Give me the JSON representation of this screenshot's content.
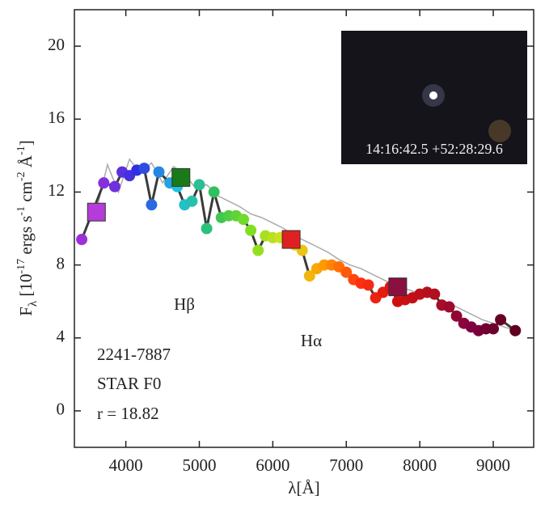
{
  "chart_data": {
    "type": "sed",
    "xlabel_parts": [
      "λ",
      "[Å]"
    ],
    "ylabel_parts": [
      "F",
      "λ",
      " [10",
      "-17",
      " ergs s",
      "-1",
      " cm",
      "-2",
      " Å",
      "-1",
      "]"
    ],
    "xlim": [
      3300,
      9550
    ],
    "xticks": [
      4000,
      5000,
      6000,
      7000,
      8000,
      9000
    ],
    "ylim": [
      -2,
      22
    ],
    "yticks": [
      0,
      4,
      8,
      12,
      16,
      20
    ],
    "annotations": [
      "Hβ",
      "Hα"
    ],
    "object_info": [
      "2241-7887",
      "STAR F0",
      "r = 18.82"
    ],
    "image_caption": "14:16:42.5 +52:28:29.6",
    "spectrum": {
      "color": "#aaaaaa",
      "x": [
        3600,
        3750,
        3900,
        4050,
        4200,
        4350,
        4500,
        4650,
        4800,
        4950,
        5100,
        5250,
        5400,
        5550,
        5700,
        5850,
        6000,
        6150,
        6300,
        6450,
        6600,
        6750,
        6900,
        7050,
        7200,
        7350,
        7500,
        7650,
        7800,
        7950,
        8100,
        8250,
        8400,
        8550,
        8700,
        8850,
        9000,
        9150,
        9300
      ],
      "values": [
        11.0,
        13.5,
        12.0,
        13.8,
        13.0,
        13.6,
        12.5,
        13.4,
        13.0,
        12.2,
        12.4,
        11.8,
        11.5,
        11.2,
        10.8,
        10.6,
        10.3,
        10.0,
        9.6,
        9.3,
        9.0,
        8.7,
        8.3,
        8.0,
        7.8,
        7.5,
        7.2,
        6.9,
        6.7,
        6.5,
        6.4,
        6.1,
        5.9,
        5.6,
        5.3,
        5.0,
        4.8,
        4.6,
        4.4
      ]
    },
    "photometry": {
      "line_color": "#3a3a3a",
      "colormap": [
        "#9b30d9",
        "#3030e0",
        "#20c0e0",
        "#30c060",
        "#80e020",
        "#e0e020",
        "#ff9900",
        "#ff3010",
        "#d01010",
        "#b01020",
        "#800040",
        "#600020"
      ],
      "x": [
        3400,
        3700,
        3850,
        3950,
        4050,
        4150,
        4250,
        4350,
        4450,
        4600,
        4700,
        4800,
        4900,
        5000,
        5100,
        5200,
        5300,
        5400,
        5500,
        5600,
        5700,
        5800,
        5900,
        6000,
        6100,
        6200,
        6300,
        6400,
        6500,
        6600,
        6700,
        6800,
        6900,
        7000,
        7100,
        7200,
        7300,
        7400,
        7500,
        7600,
        7700,
        7800,
        7900,
        8000,
        8100,
        8200,
        8300,
        8400,
        8500,
        8600,
        8700,
        8800,
        8900,
        9000,
        9100,
        9300
      ],
      "values": [
        9.4,
        12.5,
        12.3,
        13.1,
        12.9,
        13.2,
        13.3,
        11.3,
        13.1,
        12.5,
        12.3,
        11.3,
        11.5,
        12.4,
        10.0,
        12.0,
        10.6,
        10.7,
        10.7,
        10.5,
        9.9,
        8.8,
        9.6,
        9.5,
        9.5,
        9.4,
        9.1,
        8.8,
        7.4,
        7.8,
        8.0,
        8.0,
        7.9,
        7.6,
        7.2,
        7.0,
        6.9,
        6.2,
        6.5,
        6.8,
        6.0,
        6.1,
        6.2,
        6.4,
        6.5,
        6.4,
        5.8,
        5.7,
        5.2,
        4.8,
        4.6,
        4.4,
        4.5,
        4.5,
        5.0,
        4.4
      ]
    },
    "broadband": {
      "x": [
        3600,
        4750,
        6250,
        7700
      ],
      "values": [
        10.9,
        12.8,
        9.4,
        6.8
      ],
      "colors": [
        "#b43cd8",
        "#1a7a1a",
        "#e02020",
        "#8a1040"
      ]
    }
  }
}
